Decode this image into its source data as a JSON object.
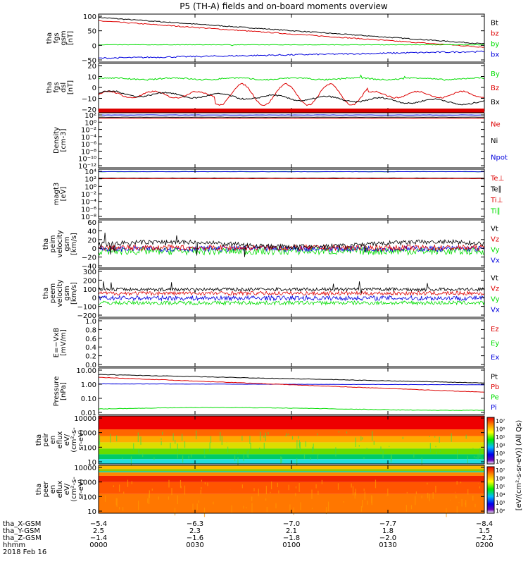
{
  "chart_data": {
    "type": "line",
    "title": "P5 (TH-A) fields and on-board moments overview",
    "time_ticks": [
      "0000",
      "0030",
      "0100",
      "0130",
      "0200"
    ],
    "colors": {
      "black": "#000000",
      "red": "#dd0000",
      "green": "#00dd00",
      "blue": "#0000dd"
    },
    "panels": [
      {
        "id": "fgs-gsm",
        "ylabel": [
          "tha",
          "fgs",
          "gsm",
          "[nT]"
        ],
        "yticks": [
          "100",
          "50",
          "0",
          "−50"
        ],
        "legend": [
          {
            "text": "Bt",
            "color": "black"
          },
          {
            "text": "bz",
            "color": "red"
          },
          {
            "text": "by",
            "color": "green"
          },
          {
            "text": "bx",
            "color": "blue"
          }
        ]
      },
      {
        "id": "fgs-dsl",
        "ylabel": [
          "tha",
          "fgs",
          "dsl",
          "[nT]"
        ],
        "yticks": [
          "20",
          "10",
          "0",
          "−10",
          "−20"
        ],
        "legend": [
          {
            "text": "By",
            "color": "green"
          },
          {
            "text": "Bz",
            "color": "red"
          },
          {
            "text": "Bx",
            "color": "black"
          }
        ]
      },
      {
        "id": "density",
        "ylabel": [
          "Density",
          "[cm-3]"
        ],
        "yticks": [
          "10²",
          "10⁰",
          "10⁻²",
          "10⁻⁴",
          "10⁻⁶",
          "10⁻⁸",
          "10⁻¹⁰",
          "10⁻¹²"
        ],
        "legend": [
          {
            "text": "Ne",
            "color": "red"
          },
          {
            "text": "Ni",
            "color": "black"
          },
          {
            "text": "Npot",
            "color": "blue"
          }
        ]
      },
      {
        "id": "temperature",
        "ylabel": [
          "magt3",
          "[eV]"
        ],
        "yticks": [
          "10⁴",
          "10²",
          "10⁰",
          "10⁻²",
          "10⁻⁴",
          "10⁻⁶",
          "10⁻⁸"
        ],
        "legend": [
          {
            "text": "Te⊥",
            "color": "red"
          },
          {
            "text": "Te∥",
            "color": "black"
          },
          {
            "text": "Ti⊥",
            "color": "red"
          },
          {
            "text": "Ti∥",
            "color": "green"
          }
        ]
      },
      {
        "id": "peim-velocity",
        "ylabel": [
          "tha",
          "peim",
          "velocity",
          "gsm",
          "[km/s]"
        ],
        "yticks": [
          "60",
          "40",
          "20",
          "0",
          "−20",
          "−40"
        ],
        "legend": [
          {
            "text": "Vt",
            "color": "black"
          },
          {
            "text": "Vz",
            "color": "red"
          },
          {
            "text": "Vy",
            "color": "green"
          },
          {
            "text": "Vx",
            "color": "blue"
          }
        ]
      },
      {
        "id": "peem-velocity",
        "ylabel": [
          "tha",
          "peem",
          "velocity",
          "gsm",
          "[km/s]"
        ],
        "yticks": [
          "300",
          "200",
          "100",
          "0",
          "−100",
          "−200"
        ],
        "legend": [
          {
            "text": "Vt",
            "color": "black"
          },
          {
            "text": "Vz",
            "color": "red"
          },
          {
            "text": "Vy",
            "color": "green"
          },
          {
            "text": "Vx",
            "color": "blue"
          }
        ]
      },
      {
        "id": "efield",
        "ylabel": [
          "E=−VxB",
          "[mV/m]"
        ],
        "yticks": [
          "1.0",
          "0.8",
          "0.6",
          "0.4",
          "0.2",
          "0.0"
        ],
        "legend": [
          {
            "text": "Ez",
            "color": "red"
          },
          {
            "text": "Ey",
            "color": "green"
          },
          {
            "text": "Ex",
            "color": "blue"
          }
        ]
      },
      {
        "id": "pressure",
        "ylabel": [
          "Pressure",
          "[nPa]"
        ],
        "yticks": [
          "10.00",
          "1.00",
          "0.10",
          "0.01"
        ],
        "legend": [
          {
            "text": "Pt",
            "color": "black"
          },
          {
            "text": "Pb",
            "color": "red"
          },
          {
            "text": "Pe",
            "color": "green"
          },
          {
            "text": "Pi",
            "color": "blue"
          }
        ]
      },
      {
        "id": "peir-spec",
        "ylabel": [
          "tha",
          "peir",
          "en",
          "eflux",
          "eV/",
          "(cm²-s-",
          "sr-eV)"
        ],
        "yticks": [
          "10000",
          "1000",
          "100",
          "10"
        ]
      },
      {
        "id": "peer-spec",
        "ylabel": [
          "tha",
          "peer",
          "en",
          "eflux",
          "eV/",
          "(cm²-s-",
          "sr-eV)"
        ],
        "yticks": [
          "10000",
          "1000",
          "100",
          "10"
        ]
      }
    ],
    "colorbar": {
      "ticks": [
        "10⁷",
        "10⁶",
        "10⁵",
        "10⁴",
        "10³",
        "10²",
        "10⁷",
        "10⁶",
        "10⁵",
        "10⁴",
        "10³",
        "10²"
      ],
      "label": "[eV/(cm²-s-sr-eV)] (All Qs)"
    },
    "ephemeris": {
      "row_labels": [
        "tha_X-GSM",
        "tha_Y-GSM",
        "tha_Z-GSM",
        "hhmm",
        "2018 Feb 16"
      ],
      "columns": [
        {
          "x": "−5.4",
          "y": "2.5",
          "z": "−1.4",
          "t": "0000"
        },
        {
          "x": "−6.3",
          "y": "2.3",
          "z": "−1.6",
          "t": "0030"
        },
        {
          "x": "−7.0",
          "y": "2.1",
          "z": "−1.8",
          "t": "0100"
        },
        {
          "x": "−7.7",
          "y": "1.8",
          "z": "−2.0",
          "t": "0130"
        },
        {
          "x": "−8.4",
          "y": "1.5",
          "z": "−2.2",
          "t": "0200"
        }
      ]
    }
  }
}
